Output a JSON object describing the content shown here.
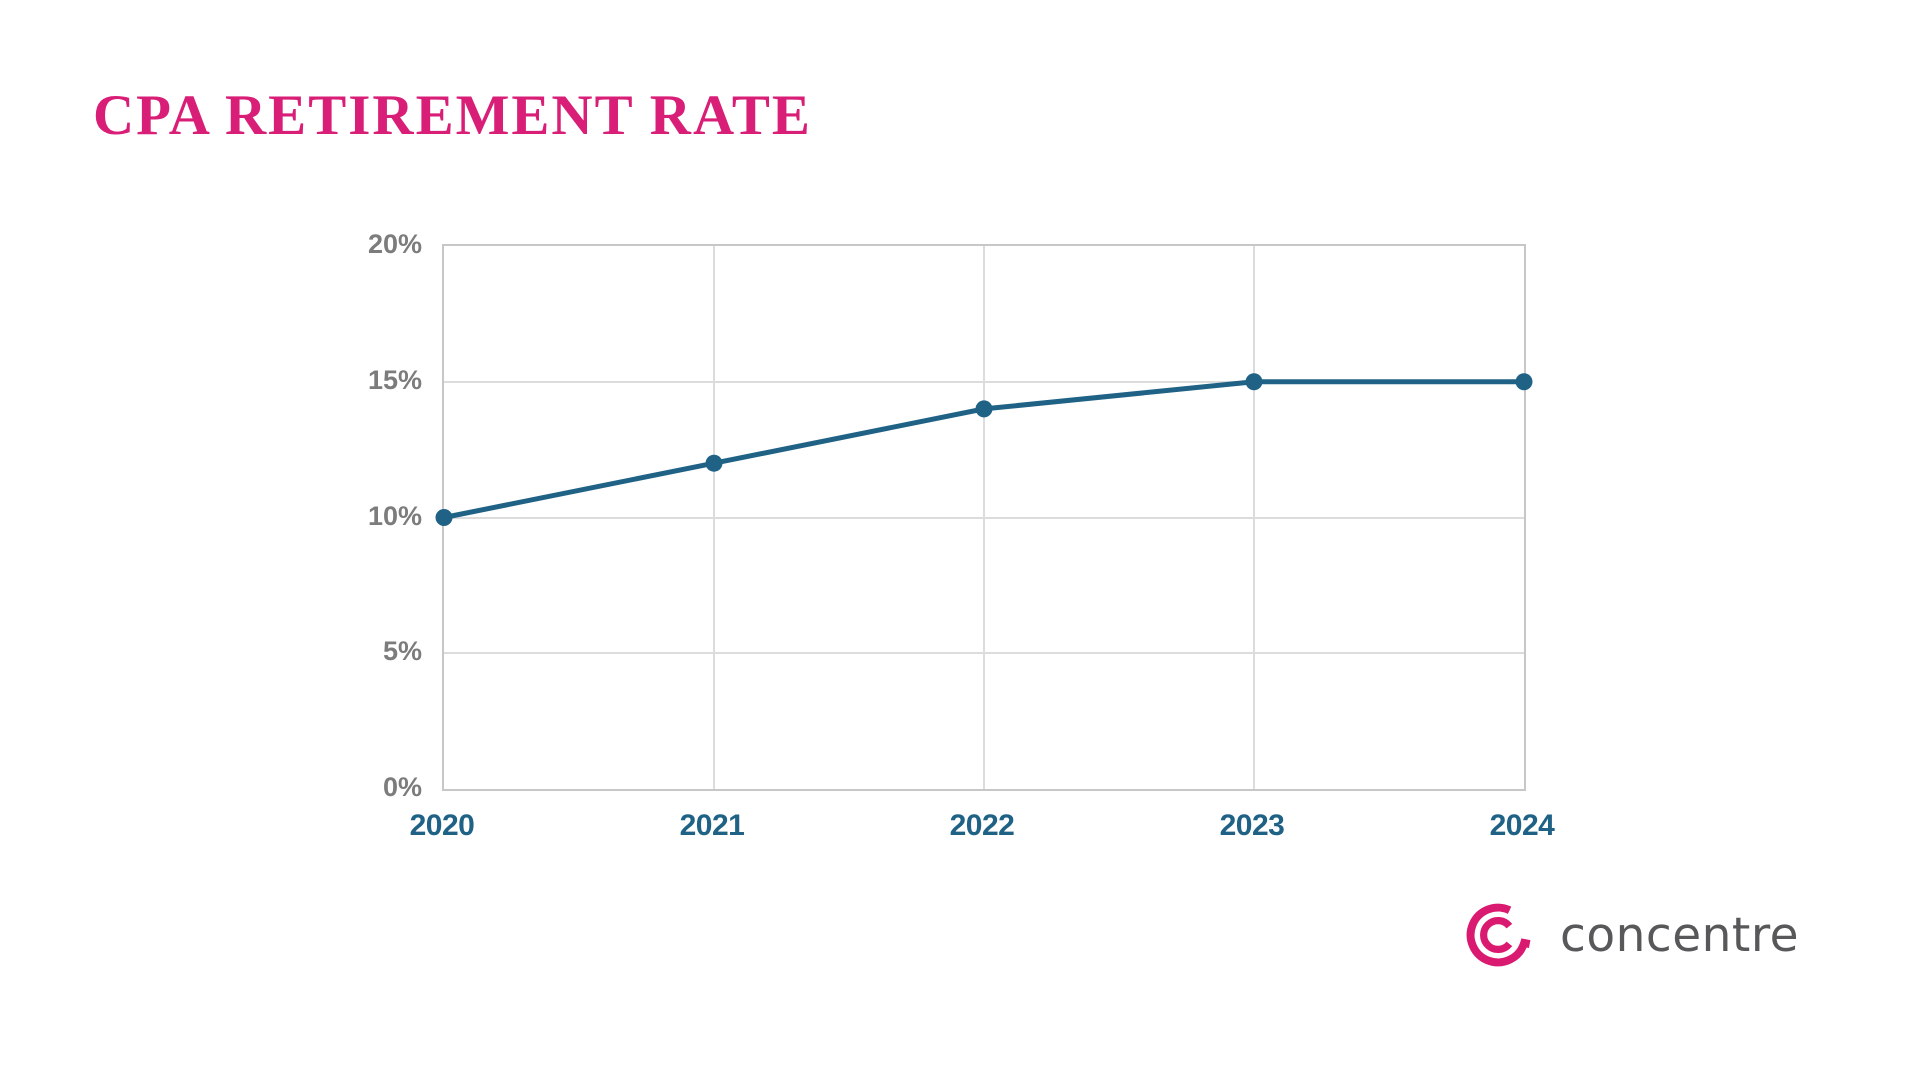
{
  "title": {
    "text": "CPA RETIREMENT RATE",
    "color": "#D91E77"
  },
  "chart_data": {
    "type": "line",
    "categories": [
      "2020",
      "2021",
      "2022",
      "2023",
      "2024"
    ],
    "series": [
      {
        "name": "CPA retirement rate",
        "values": [
          10,
          12,
          14,
          15,
          15
        ]
      }
    ],
    "title": "CPA RETIREMENT RATE",
    "xlabel": "",
    "ylabel": "",
    "ylim": [
      0,
      20
    ],
    "ytick_step": 5,
    "ytick_suffix": "%",
    "ytick_labels": [
      "0%",
      "5%",
      "10%",
      "15%",
      "20%"
    ],
    "grid": true,
    "legend_position": "none",
    "line_color": "#1F6286",
    "marker_color": "#1F6286",
    "marker_shape": "circle",
    "axis_label_color": "#7C7C7C",
    "x_label_color": "#1F6286",
    "grid_color": "#DCDCDC",
    "plot_border_color": "#C7C7C7"
  },
  "branding": {
    "logo_text": "concentre",
    "logo_text_color": "#58585A",
    "logo_mark_color": "#D91A70"
  }
}
